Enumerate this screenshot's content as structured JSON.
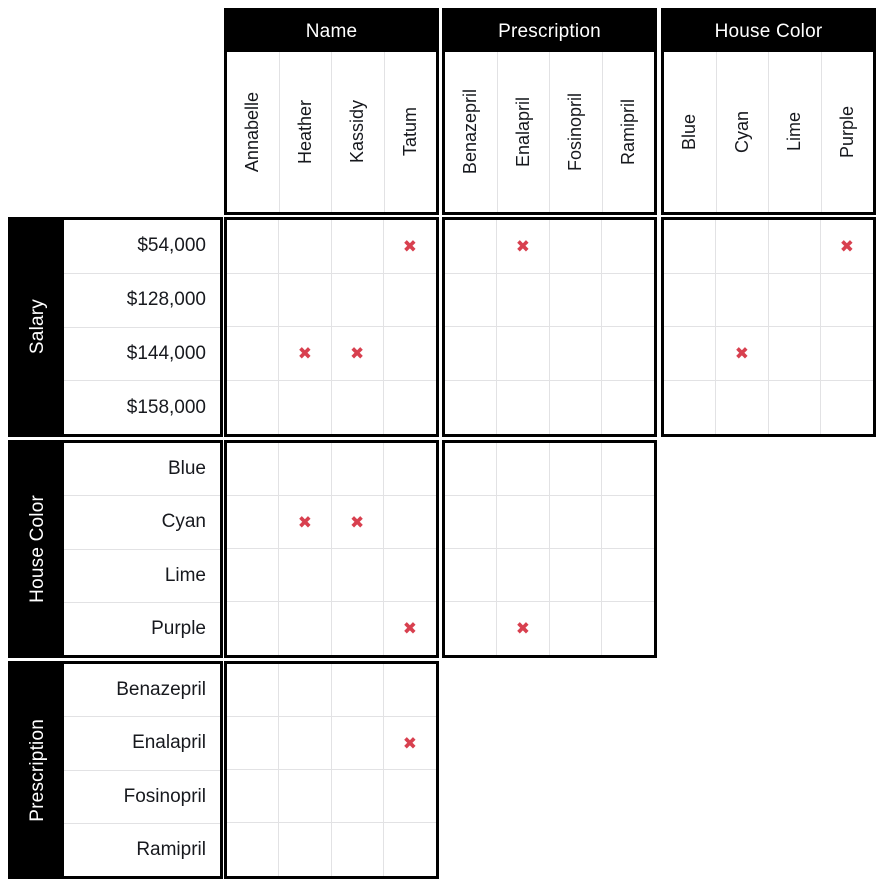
{
  "puzzle": {
    "col_groups": [
      {
        "label": "Name",
        "items": [
          "Annabelle",
          "Heather",
          "Kassidy",
          "Tatum"
        ]
      },
      {
        "label": "Prescription",
        "items": [
          "Benazepril",
          "Enalapril",
          "Fosinopril",
          "Ramipril"
        ]
      },
      {
        "label": "House Color",
        "items": [
          "Blue",
          "Cyan",
          "Lime",
          "Purple"
        ]
      }
    ],
    "row_groups": [
      {
        "label": "Salary",
        "items": [
          "$54,000",
          "$128,000",
          "$144,000",
          "$158,000"
        ]
      },
      {
        "label": "House Color",
        "items": [
          "Blue",
          "Cyan",
          "Lime",
          "Purple"
        ]
      },
      {
        "label": "Prescription",
        "items": [
          "Benazepril",
          "Enalapril",
          "Fosinopril",
          "Ramipril"
        ]
      }
    ],
    "grids": [
      {
        "row_group": "Salary",
        "col_group": "Name",
        "marks": [
          [
            0,
            3
          ],
          [
            2,
            1
          ],
          [
            2,
            2
          ]
        ]
      },
      {
        "row_group": "Salary",
        "col_group": "Prescription",
        "marks": [
          [
            0,
            1
          ]
        ]
      },
      {
        "row_group": "Salary",
        "col_group": "House Color",
        "marks": [
          [
            0,
            3
          ],
          [
            2,
            1
          ]
        ]
      },
      {
        "row_group": "House Color",
        "col_group": "Name",
        "marks": [
          [
            1,
            1
          ],
          [
            1,
            2
          ],
          [
            3,
            3
          ]
        ]
      },
      {
        "row_group": "House Color",
        "col_group": "Prescription",
        "marks": [
          [
            3,
            1
          ]
        ]
      },
      {
        "row_group": "Prescription",
        "col_group": "Name",
        "marks": [
          [
            1,
            3
          ]
        ]
      }
    ],
    "mark_glyph": "✖",
    "colors": {
      "mark": "#d8404f",
      "header_bg": "#000000",
      "header_text": "#ffffff",
      "grid_line": "#e2e2e4",
      "block_border": "#000000",
      "label_text": "#17191e",
      "background": "#ffffff"
    }
  }
}
